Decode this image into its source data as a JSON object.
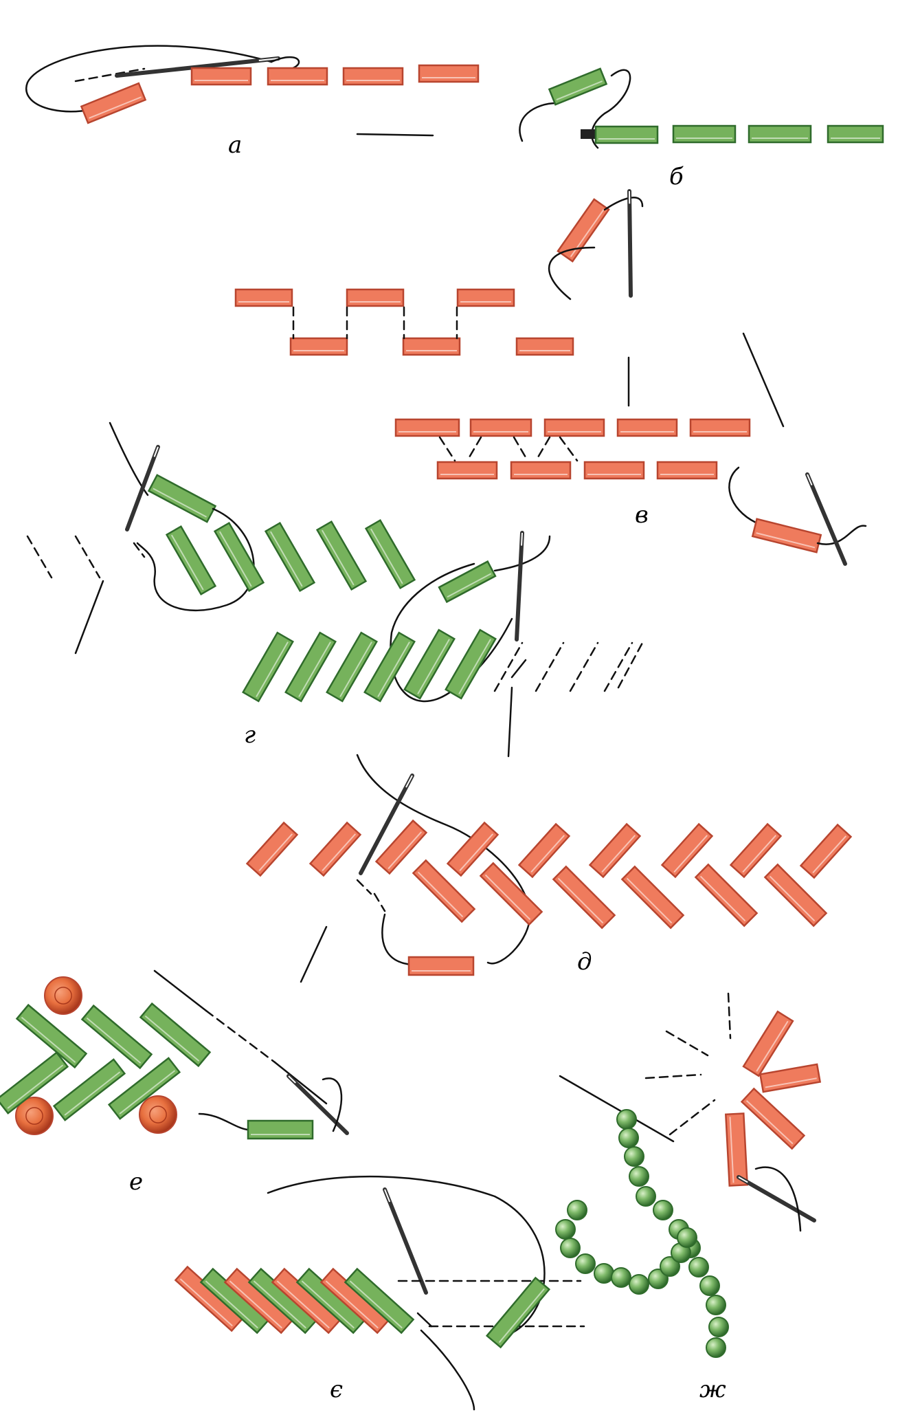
{
  "figure": {
    "labels": {
      "a": "а",
      "b": "б",
      "v": "в",
      "g": "г",
      "d": "д",
      "e": "е",
      "ye": "є",
      "zh": "ж"
    },
    "colors": {
      "bead_red": "#ef7b5d",
      "bead_red_edge": "#b8452f",
      "bead_green": "#76b25c",
      "bead_green_edge": "#2f6b2b",
      "thread": "#111111",
      "needle": "#333333",
      "round_bead_green": "#7fba6a",
      "round_bead_red": "#e8703f"
    }
  }
}
